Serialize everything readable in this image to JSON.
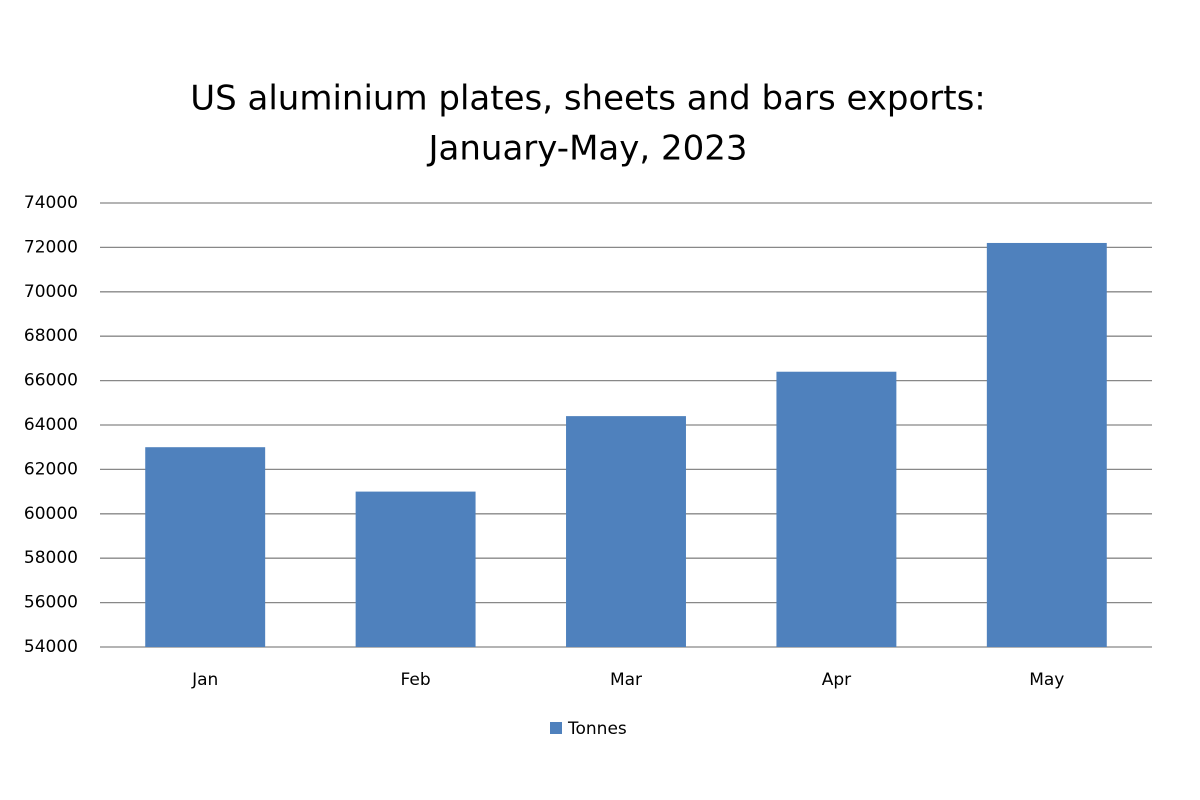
{
  "chart_data": {
    "type": "bar",
    "title": [
      "US aluminium plates, sheets and bars exports:",
      "January-May, 2023"
    ],
    "categories": [
      "Jan",
      "Feb",
      "Mar",
      "Apr",
      "May"
    ],
    "series": [
      {
        "name": "Tonnes",
        "color": "#4f81bd",
        "values": [
          63000,
          61000,
          64400,
          66400,
          72200
        ]
      }
    ],
    "ylim": [
      54000,
      74000
    ],
    "yticks": [
      54000,
      56000,
      58000,
      60000,
      62000,
      64000,
      66000,
      68000,
      70000,
      72000,
      74000
    ],
    "grid": true,
    "legend": "bottom"
  }
}
